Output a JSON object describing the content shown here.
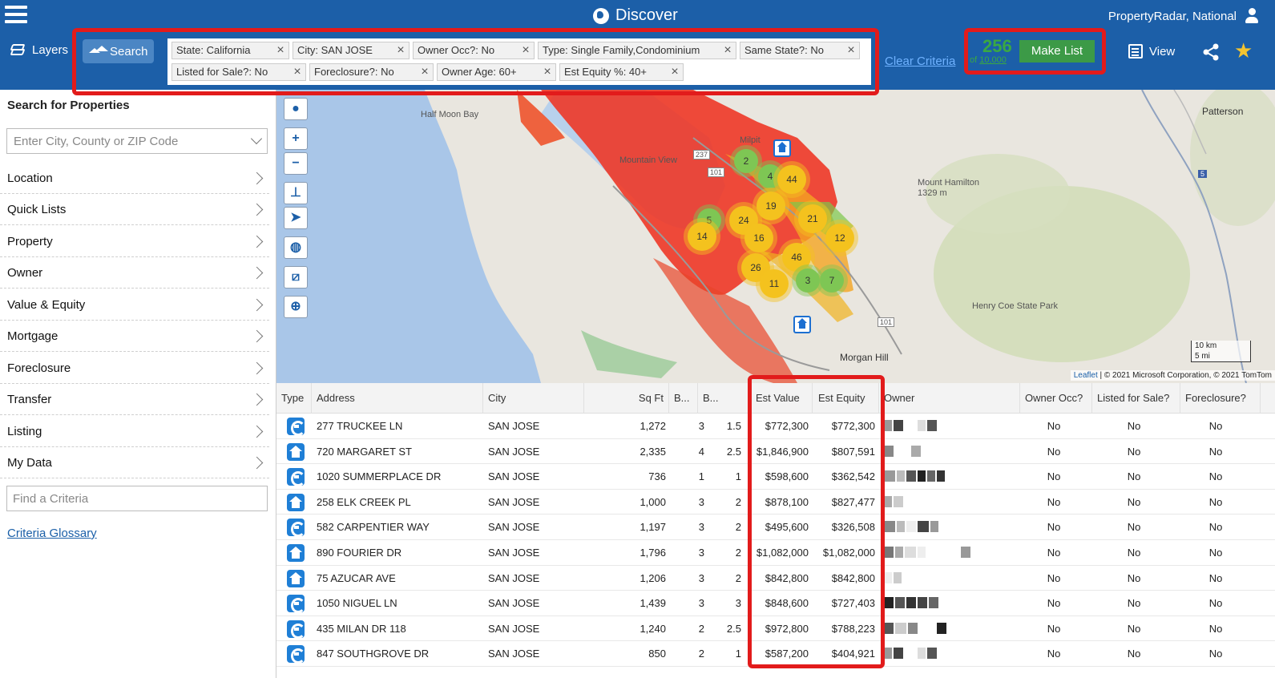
{
  "header": {
    "title": "Discover",
    "account": "PropertyRadar, National"
  },
  "toolbar": {
    "layers_label": "Layers",
    "search_label": "Search",
    "criteria": [
      "State: California",
      "City: SAN JOSE",
      "Owner Occ?: No",
      "Type: Single Family,Condominium",
      "Same State?: No",
      "Listed for Sale?: No",
      "Foreclosure?: No",
      "Owner Age: 60+",
      "Est Equity %: 40+"
    ],
    "clear_label": "Clear Criteria",
    "count": "256",
    "count_of_prefix": "of ",
    "count_of_limit": "10,000",
    "make_list_label": "Make List",
    "view_label": "View"
  },
  "sidebar": {
    "title": "Search for Properties",
    "location_placeholder": "Enter City, County or ZIP Code",
    "items": [
      "Location",
      "Quick Lists",
      "Property",
      "Owner",
      "Value & Equity",
      "Mortgage",
      "Foreclosure",
      "Transfer",
      "Listing",
      "My Data"
    ],
    "find_placeholder": "Find a Criteria",
    "glossary_label": "Criteria Glossary"
  },
  "map": {
    "labels": {
      "half_moon_bay": "Half Moon Bay",
      "milpitas": "Milpit",
      "mountain_view": "Mountain View",
      "mount_hamilton": "Mount Hamilton",
      "mount_hamilton_elev": "1329 m",
      "henry_coe": "Henry Coe State Park",
      "morgan_hill": "Morgan Hill",
      "patterson": "Patterson",
      "road_237": "237",
      "road_101": "101",
      "road_101b": "101",
      "road_5": "5"
    },
    "clusters": [
      {
        "label": "2",
        "color": "green"
      },
      {
        "label": "4",
        "color": "green"
      },
      {
        "label": "44",
        "color": "yellow"
      },
      {
        "label": "19",
        "color": "yellow"
      },
      {
        "label": "5",
        "color": "green"
      },
      {
        "label": "24",
        "color": "yellow"
      },
      {
        "label": "21",
        "color": "yellow"
      },
      {
        "label": "14",
        "color": "yellow"
      },
      {
        "label": "16",
        "color": "yellow"
      },
      {
        "label": "12",
        "color": "yellow"
      },
      {
        "label": "46",
        "color": "yellow"
      },
      {
        "label": "26",
        "color": "yellow"
      },
      {
        "label": "3",
        "color": "green"
      },
      {
        "label": "7",
        "color": "green"
      },
      {
        "label": "11",
        "color": "yellow"
      }
    ],
    "scale_km": "10 km",
    "scale_mi": "5 mi",
    "attribution_link": "Leaflet",
    "attribution_text": " | © 2021 Microsoft Corporation, © 2021 TomTom"
  },
  "table": {
    "columns": [
      "Type",
      "Address",
      "City",
      "Sq Ft",
      "B...",
      "B...",
      "Est Value",
      "Est Equity",
      "Owner",
      "Owner Occ?",
      "Listed for Sale?",
      "Foreclosure?"
    ],
    "rows": [
      {
        "type": "condo",
        "address": "277 TRUCKEE LN",
        "city": "SAN JOSE",
        "sqft": "1,272",
        "beds": "3",
        "baths": "1.5",
        "est_value": "$772,300",
        "est_equity": "$772,300",
        "owner_occ": "No",
        "listed": "No",
        "foreclosure": "No"
      },
      {
        "type": "home",
        "address": "720 MARGARET ST",
        "city": "SAN JOSE",
        "sqft": "2,335",
        "beds": "4",
        "baths": "2.5",
        "est_value": "$1,846,900",
        "est_equity": "$807,591",
        "owner_occ": "No",
        "listed": "No",
        "foreclosure": "No"
      },
      {
        "type": "condo",
        "address": "1020 SUMMERPLACE DR",
        "city": "SAN JOSE",
        "sqft": "736",
        "beds": "1",
        "baths": "1",
        "est_value": "$598,600",
        "est_equity": "$362,542",
        "owner_occ": "No",
        "listed": "No",
        "foreclosure": "No"
      },
      {
        "type": "home",
        "address": "258 ELK CREEK PL",
        "city": "SAN JOSE",
        "sqft": "1,000",
        "beds": "3",
        "baths": "2",
        "est_value": "$878,100",
        "est_equity": "$827,477",
        "owner_occ": "No",
        "listed": "No",
        "foreclosure": "No"
      },
      {
        "type": "condo",
        "address": "582 CARPENTIER WAY",
        "city": "SAN JOSE",
        "sqft": "1,197",
        "beds": "3",
        "baths": "2",
        "est_value": "$495,600",
        "est_equity": "$326,508",
        "owner_occ": "No",
        "listed": "No",
        "foreclosure": "No"
      },
      {
        "type": "home",
        "address": "890 FOURIER DR",
        "city": "SAN JOSE",
        "sqft": "1,796",
        "beds": "3",
        "baths": "2",
        "est_value": "$1,082,000",
        "est_equity": "$1,082,000",
        "owner_occ": "No",
        "listed": "No",
        "foreclosure": "No"
      },
      {
        "type": "home",
        "address": "75 AZUCAR AVE",
        "city": "SAN JOSE",
        "sqft": "1,206",
        "beds": "3",
        "baths": "2",
        "est_value": "$842,800",
        "est_equity": "$842,800",
        "owner_occ": "No",
        "listed": "No",
        "foreclosure": "No"
      },
      {
        "type": "condo",
        "address": "1050 NIGUEL LN",
        "city": "SAN JOSE",
        "sqft": "1,439",
        "beds": "3",
        "baths": "3",
        "est_value": "$848,600",
        "est_equity": "$727,403",
        "owner_occ": "No",
        "listed": "No",
        "foreclosure": "No"
      },
      {
        "type": "condo",
        "address": "435 MILAN DR 118",
        "city": "SAN JOSE",
        "sqft": "1,240",
        "beds": "2",
        "baths": "2.5",
        "est_value": "$972,800",
        "est_equity": "$788,223",
        "owner_occ": "No",
        "listed": "No",
        "foreclosure": "No"
      },
      {
        "type": "condo",
        "address": "847 SOUTHGROVE DR",
        "city": "SAN JOSE",
        "sqft": "850",
        "beds": "2",
        "baths": "1",
        "est_value": "$587,200",
        "est_equity": "$404,921",
        "owner_occ": "No",
        "listed": "No",
        "foreclosure": "No"
      }
    ]
  },
  "colors": {
    "brand_blue": "#1c5fa8",
    "make_list_green": "#3c9a47",
    "highlight_red": "#e21b1b",
    "cluster_yellow": "#f4c21e",
    "cluster_green": "#7ec654"
  }
}
